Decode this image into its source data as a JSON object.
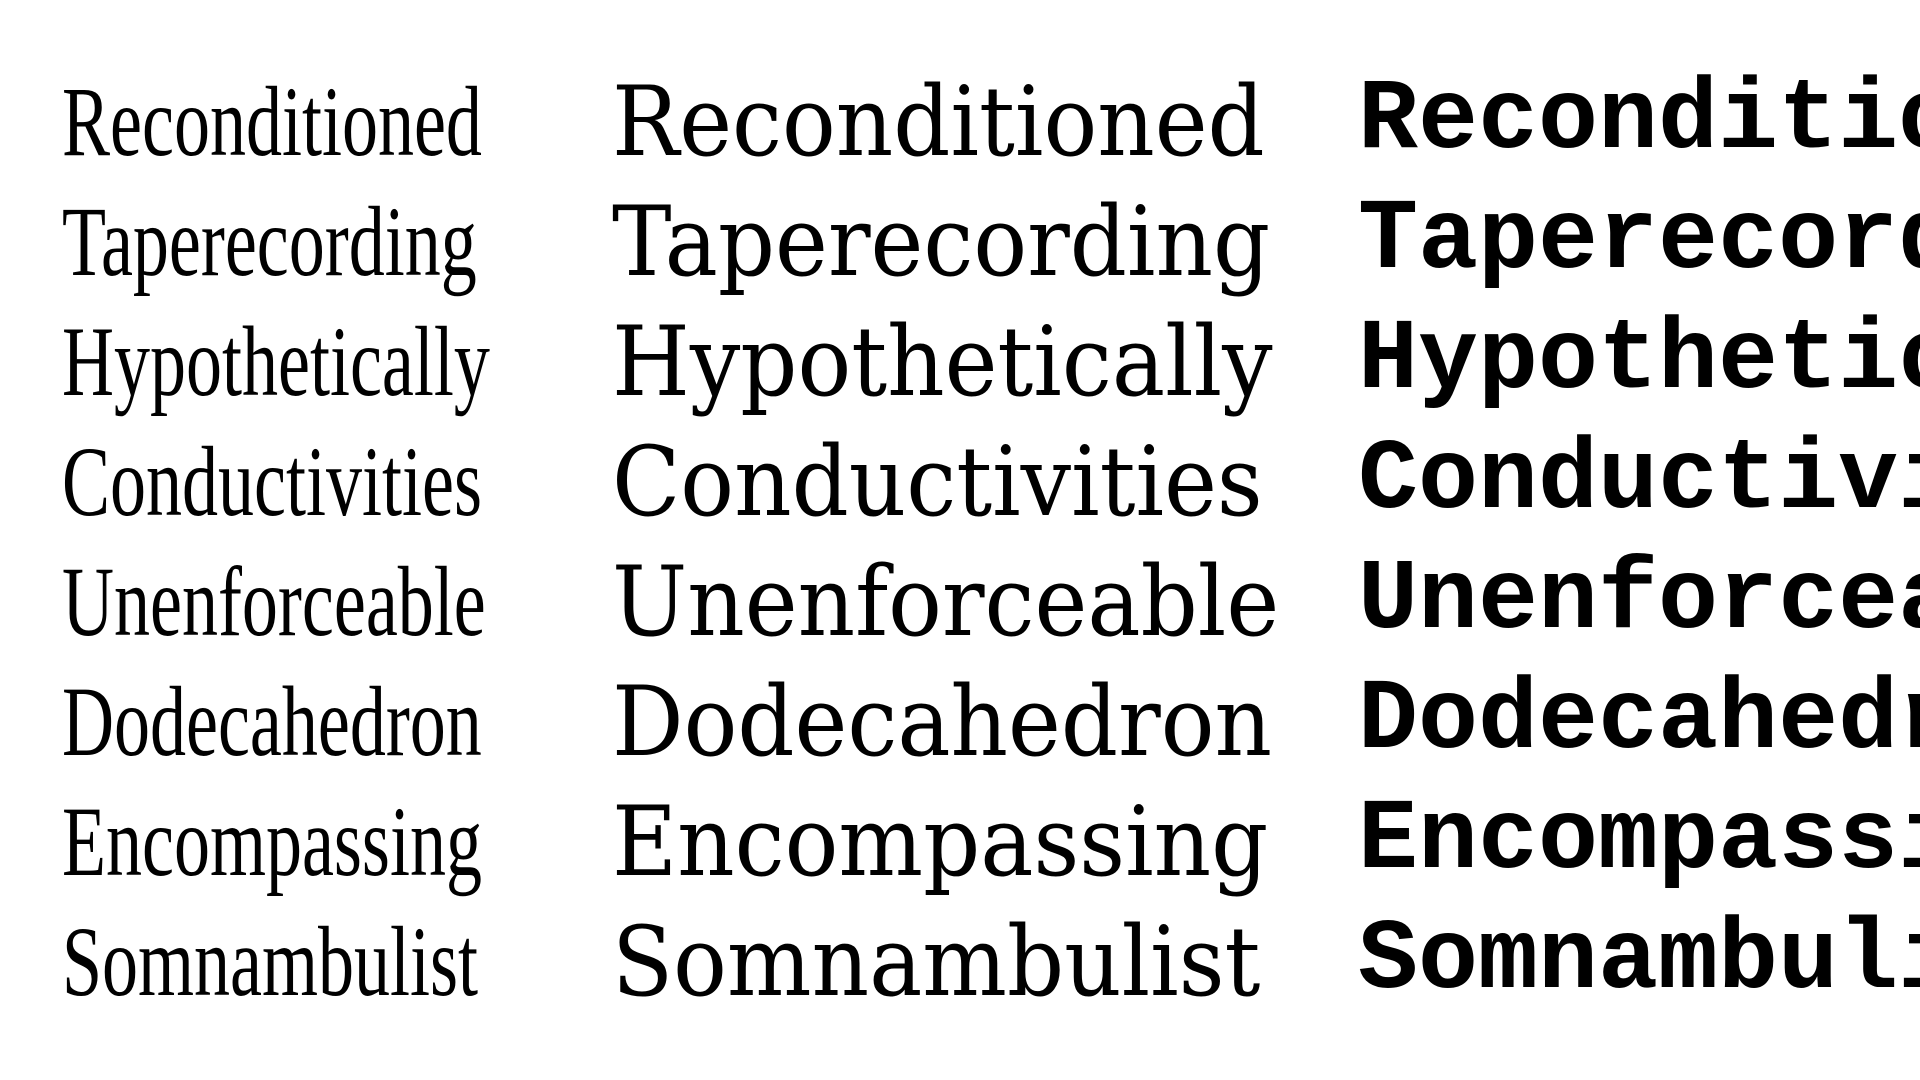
{
  "words": [
    "Reconditioned",
    "Taperecording",
    "Hypothetically",
    "Conductivities",
    "Unenforceable",
    "Dodecahedron",
    "Encompassing",
    "Somnambulist"
  ],
  "colors": {
    "background": "#ffffff",
    "text": "#000000"
  }
}
